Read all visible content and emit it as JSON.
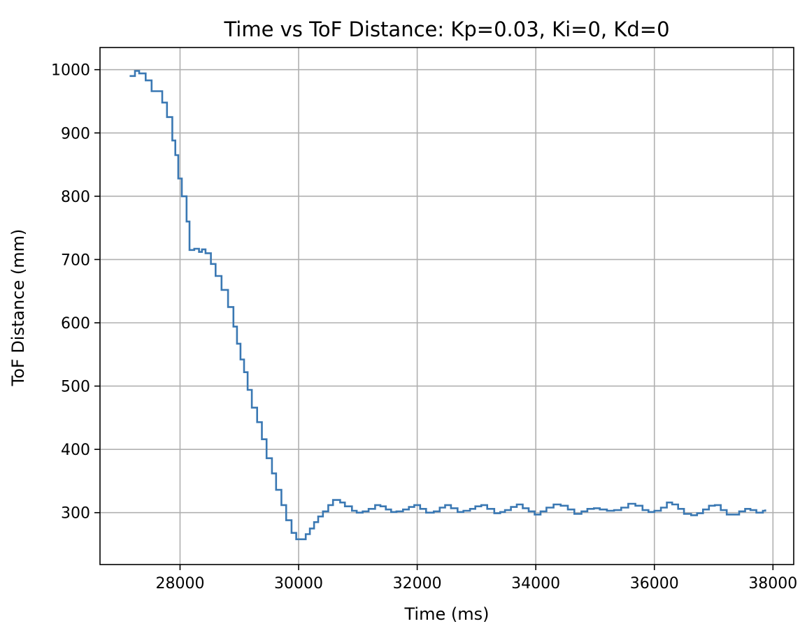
{
  "chart_data": {
    "type": "line",
    "title": "Time vs ToF Distance: Kp=0.03, Ki=0, Kd=0",
    "xlabel": "Time (ms)",
    "ylabel": "ToF Distance (mm)",
    "xlim": [
      26650,
      38350
    ],
    "ylim": [
      218,
      1035
    ],
    "xticks": [
      28000,
      30000,
      32000,
      34000,
      36000,
      38000
    ],
    "xtick_labels": [
      "28000",
      "30000",
      "32000",
      "34000",
      "36000",
      "38000"
    ],
    "yticks": [
      300,
      400,
      500,
      600,
      700,
      800,
      900,
      1000
    ],
    "ytick_labels": [
      "300",
      "400",
      "500",
      "600",
      "700",
      "800",
      "900",
      "1000"
    ],
    "grid": true,
    "line_style": "steps",
    "colors": {
      "series": "#3a78b3",
      "grid": "#b0b0b0"
    },
    "series": [
      {
        "x": [
          27150,
          27240,
          27310,
          27420,
          27520,
          27700,
          27780,
          27870,
          27920,
          27970,
          28030,
          28110,
          28160,
          28240,
          28320,
          28370,
          28430,
          28520,
          28600,
          28700,
          28810,
          28900,
          28960,
          29020,
          29080,
          29140,
          29210,
          29300,
          29380,
          29460,
          29550,
          29620,
          29710,
          29790,
          29880,
          29960,
          30040,
          30120,
          30190,
          30260,
          30330,
          30410,
          30500,
          30580,
          30700,
          30780,
          30900,
          30980,
          31080,
          31180,
          31290,
          31380,
          31470,
          31560,
          31650,
          31760,
          31860,
          31950,
          32050,
          32150,
          32280,
          32380,
          32470,
          32570,
          32680,
          32780,
          32890,
          32980,
          33080,
          33180,
          33300,
          33400,
          33480,
          33580,
          33680,
          33780,
          33880,
          33980,
          34080,
          34180,
          34300,
          34420,
          34540,
          34650,
          34770,
          34870,
          34980,
          35080,
          35200,
          35320,
          35440,
          35560,
          35680,
          35800,
          35900,
          36000,
          36110,
          36210,
          36300,
          36400,
          36500,
          36620,
          36720,
          36820,
          36920,
          37020,
          37120,
          37220,
          37320,
          37430,
          37530,
          37620,
          37720,
          37830,
          37870
        ],
        "y": [
          990,
          998,
          994,
          983,
          966,
          948,
          925,
          888,
          865,
          828,
          800,
          760,
          715,
          717,
          712,
          716,
          710,
          693,
          674,
          652,
          625,
          594,
          567,
          542,
          522,
          494,
          466,
          443,
          416,
          386,
          362,
          336,
          312,
          288,
          268,
          258,
          258,
          266,
          275,
          285,
          294,
          302,
          312,
          320,
          316,
          310,
          303,
          300,
          302,
          306,
          312,
          310,
          305,
          301,
          302,
          305,
          309,
          312,
          306,
          300,
          302,
          308,
          312,
          307,
          301,
          303,
          306,
          310,
          312,
          306,
          299,
          301,
          304,
          309,
          313,
          307,
          302,
          297,
          302,
          308,
          313,
          311,
          305,
          298,
          302,
          306,
          307,
          305,
          303,
          304,
          308,
          314,
          311,
          304,
          301,
          303,
          308,
          316,
          313,
          306,
          298,
          296,
          299,
          305,
          311,
          312,
          304,
          297,
          297,
          302,
          306,
          304,
          300,
          303,
          305
        ]
      }
    ]
  }
}
